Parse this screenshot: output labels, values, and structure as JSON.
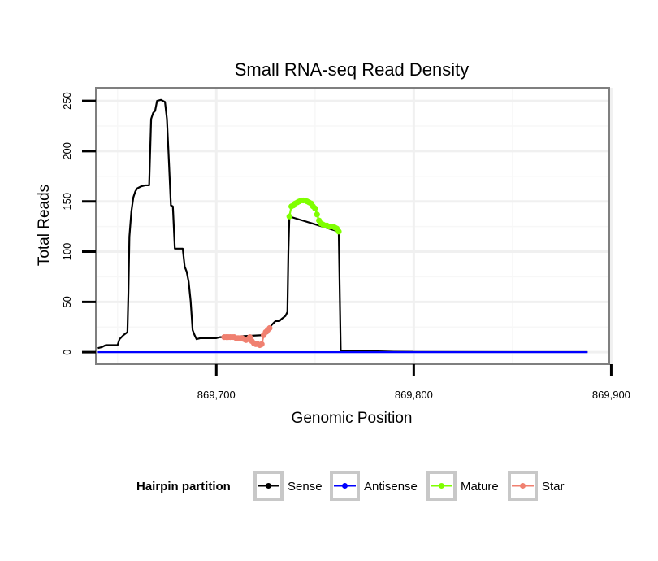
{
  "chart_data": {
    "type": "line",
    "title": "Small RNA-seq Read Density",
    "xlabel": "Genomic Position",
    "ylabel": "Total Reads",
    "xlim": [
      869639,
      869899
    ],
    "ylim": [
      -12,
      263
    ],
    "x_ticks": [
      {
        "value": 869700,
        "label": "869,700"
      },
      {
        "value": 869800,
        "label": "869,800"
      },
      {
        "value": 869900,
        "label": "869,900"
      }
    ],
    "y_ticks": [
      {
        "value": 0,
        "label": "0"
      },
      {
        "value": 50,
        "label": "50"
      },
      {
        "value": 100,
        "label": "100"
      },
      {
        "value": 150,
        "label": "150"
      },
      {
        "value": 200,
        "label": "200"
      },
      {
        "value": 250,
        "label": "250"
      }
    ],
    "grid": true,
    "legend": {
      "title": "Hairpin partition",
      "position": "bottom",
      "entries": [
        "Sense",
        "Antisense",
        "Mature",
        "Star"
      ]
    },
    "series": [
      {
        "name": "Sense",
        "color": "#000000",
        "points": [
          [
            869640,
            4
          ],
          [
            869642,
            5
          ],
          [
            869644,
            7
          ],
          [
            869646,
            7
          ],
          [
            869648,
            7
          ],
          [
            869650,
            7
          ],
          [
            869651,
            13
          ],
          [
            869653,
            17
          ],
          [
            869655,
            20
          ],
          [
            869655.5,
            60
          ],
          [
            869656,
            115
          ],
          [
            869657,
            140
          ],
          [
            869658,
            154
          ],
          [
            869659,
            160
          ],
          [
            869660,
            163
          ],
          [
            869662,
            165
          ],
          [
            869664,
            166
          ],
          [
            869666,
            166
          ],
          [
            869667,
            232
          ],
          [
            869668,
            238
          ],
          [
            869669,
            240
          ],
          [
            869670,
            250
          ],
          [
            869672,
            251
          ],
          [
            869674,
            249
          ],
          [
            869675,
            232
          ],
          [
            869676,
            190
          ],
          [
            869677,
            146
          ],
          [
            869678,
            145
          ],
          [
            869679,
            103
          ],
          [
            869680,
            103
          ],
          [
            869683,
            103
          ],
          [
            869684,
            85
          ],
          [
            869685,
            80
          ],
          [
            869686,
            70
          ],
          [
            869687,
            51
          ],
          [
            869688,
            22
          ],
          [
            869689,
            17
          ],
          [
            869690,
            13
          ],
          [
            869692,
            14
          ],
          [
            869695,
            14
          ],
          [
            869698,
            14
          ],
          [
            869700,
            14
          ],
          [
            869702,
            15
          ],
          [
            869704,
            15
          ],
          [
            869724,
            17
          ],
          [
            869726,
            19
          ],
          [
            869727,
            24
          ],
          [
            869728,
            27
          ],
          [
            869729,
            29
          ],
          [
            869730,
            31
          ],
          [
            869732,
            31
          ],
          [
            869733,
            33
          ],
          [
            869735,
            36
          ],
          [
            869736,
            40
          ],
          [
            869736.5,
            100
          ],
          [
            869737,
            135
          ],
          [
            869762,
            120
          ],
          [
            869762.5,
            60
          ],
          [
            869763,
            1
          ],
          [
            869765,
            1.5
          ],
          [
            869770,
            1.5
          ],
          [
            869775,
            1.5
          ],
          [
            869780,
            1
          ],
          [
            869790,
            0.5
          ],
          [
            869800,
            0.3
          ],
          [
            869850,
            0.2
          ],
          [
            869888,
            0.2
          ]
        ]
      },
      {
        "name": "Antisense",
        "color": "#0000ff",
        "points": [
          [
            869640,
            0
          ],
          [
            869700,
            0
          ],
          [
            869760,
            0
          ],
          [
            869770,
            0
          ],
          [
            869780,
            0
          ],
          [
            869790,
            0
          ],
          [
            869888,
            0
          ]
        ]
      },
      {
        "name": "Mature",
        "color": "#7fff00",
        "points": [
          [
            869737,
            135
          ],
          [
            869738,
            145
          ],
          [
            869739,
            146
          ],
          [
            869740,
            148
          ],
          [
            869741,
            149
          ],
          [
            869742,
            150
          ],
          [
            869743,
            151
          ],
          [
            869744,
            151
          ],
          [
            869745,
            151
          ],
          [
            869746,
            150
          ],
          [
            869747,
            149
          ],
          [
            869748,
            148
          ],
          [
            869749,
            145
          ],
          [
            869750,
            143
          ],
          [
            869751,
            137
          ],
          [
            869752,
            131
          ],
          [
            869753,
            128
          ],
          [
            869754,
            127
          ],
          [
            869755,
            126
          ],
          [
            869756,
            126
          ],
          [
            869757,
            125
          ],
          [
            869758,
            125
          ],
          [
            869759,
            125
          ],
          [
            869760,
            124
          ],
          [
            869761,
            123
          ],
          [
            869762,
            120
          ]
        ]
      },
      {
        "name": "Star",
        "color": "#f08070",
        "points": [
          [
            869704,
            15
          ],
          [
            869705,
            15
          ],
          [
            869706,
            15
          ],
          [
            869707,
            15
          ],
          [
            869708,
            15
          ],
          [
            869709,
            15
          ],
          [
            869710,
            14
          ],
          [
            869711,
            14
          ],
          [
            869712,
            14
          ],
          [
            869713,
            14
          ],
          [
            869714,
            13
          ],
          [
            869715,
            12
          ],
          [
            869716,
            13
          ],
          [
            869717,
            15
          ],
          [
            869718,
            11
          ],
          [
            869719,
            9
          ],
          [
            869720,
            8
          ],
          [
            869721,
            8
          ],
          [
            869722,
            7
          ],
          [
            869723,
            8
          ],
          [
            869724,
            17
          ],
          [
            869725,
            20
          ],
          [
            869726,
            22
          ],
          [
            869727,
            24
          ]
        ]
      }
    ]
  }
}
